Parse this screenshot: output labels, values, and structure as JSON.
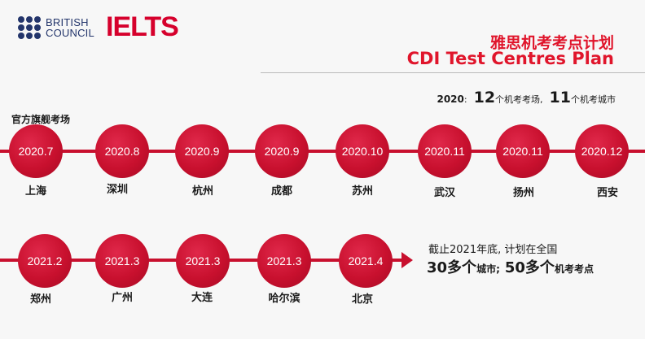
{
  "header": {
    "brand_line1": "BRITISH",
    "brand_line2": "COUNCIL",
    "ielts": "IELTS",
    "title_cn": "雅思机考考点计划",
    "title_en": "CDI Test Centres Plan"
  },
  "summary": {
    "year": "2020",
    "colon": ":",
    "centres_num": "12",
    "centres_label": "个机考考场,",
    "cities_num": "11",
    "cities_label": "个机考城市"
  },
  "flagship_label": "官方旗舰考场",
  "row1": [
    {
      "date": "2020.7",
      "city": "上海"
    },
    {
      "date": "2020.8",
      "city": "深圳"
    },
    {
      "date": "2020.9",
      "city": "杭州"
    },
    {
      "date": "2020.9",
      "city": "成都"
    },
    {
      "date": "2020.10",
      "city": "苏州"
    },
    {
      "date": "2020.11",
      "city": "武汉"
    },
    {
      "date": "2020.11",
      "city": "扬州"
    },
    {
      "date": "2020.12",
      "city": "西安"
    }
  ],
  "row2": [
    {
      "date": "2021.2",
      "city": "郑州"
    },
    {
      "date": "2021.3",
      "city": "广州"
    },
    {
      "date": "2021.3",
      "city": "大连"
    },
    {
      "date": "2021.3",
      "city": "哈尔滨"
    },
    {
      "date": "2021.4",
      "city": "北京"
    }
  ],
  "plan_note": {
    "line1": "截止2021年底, 计划在全国",
    "cities_num": "30多个",
    "cities_label": "城市;",
    "centres_num": "50多个",
    "centres_label": "机考考点"
  },
  "colors": {
    "accent": "#c8102e",
    "title": "#e0152b",
    "brand_blue": "#23356b"
  }
}
